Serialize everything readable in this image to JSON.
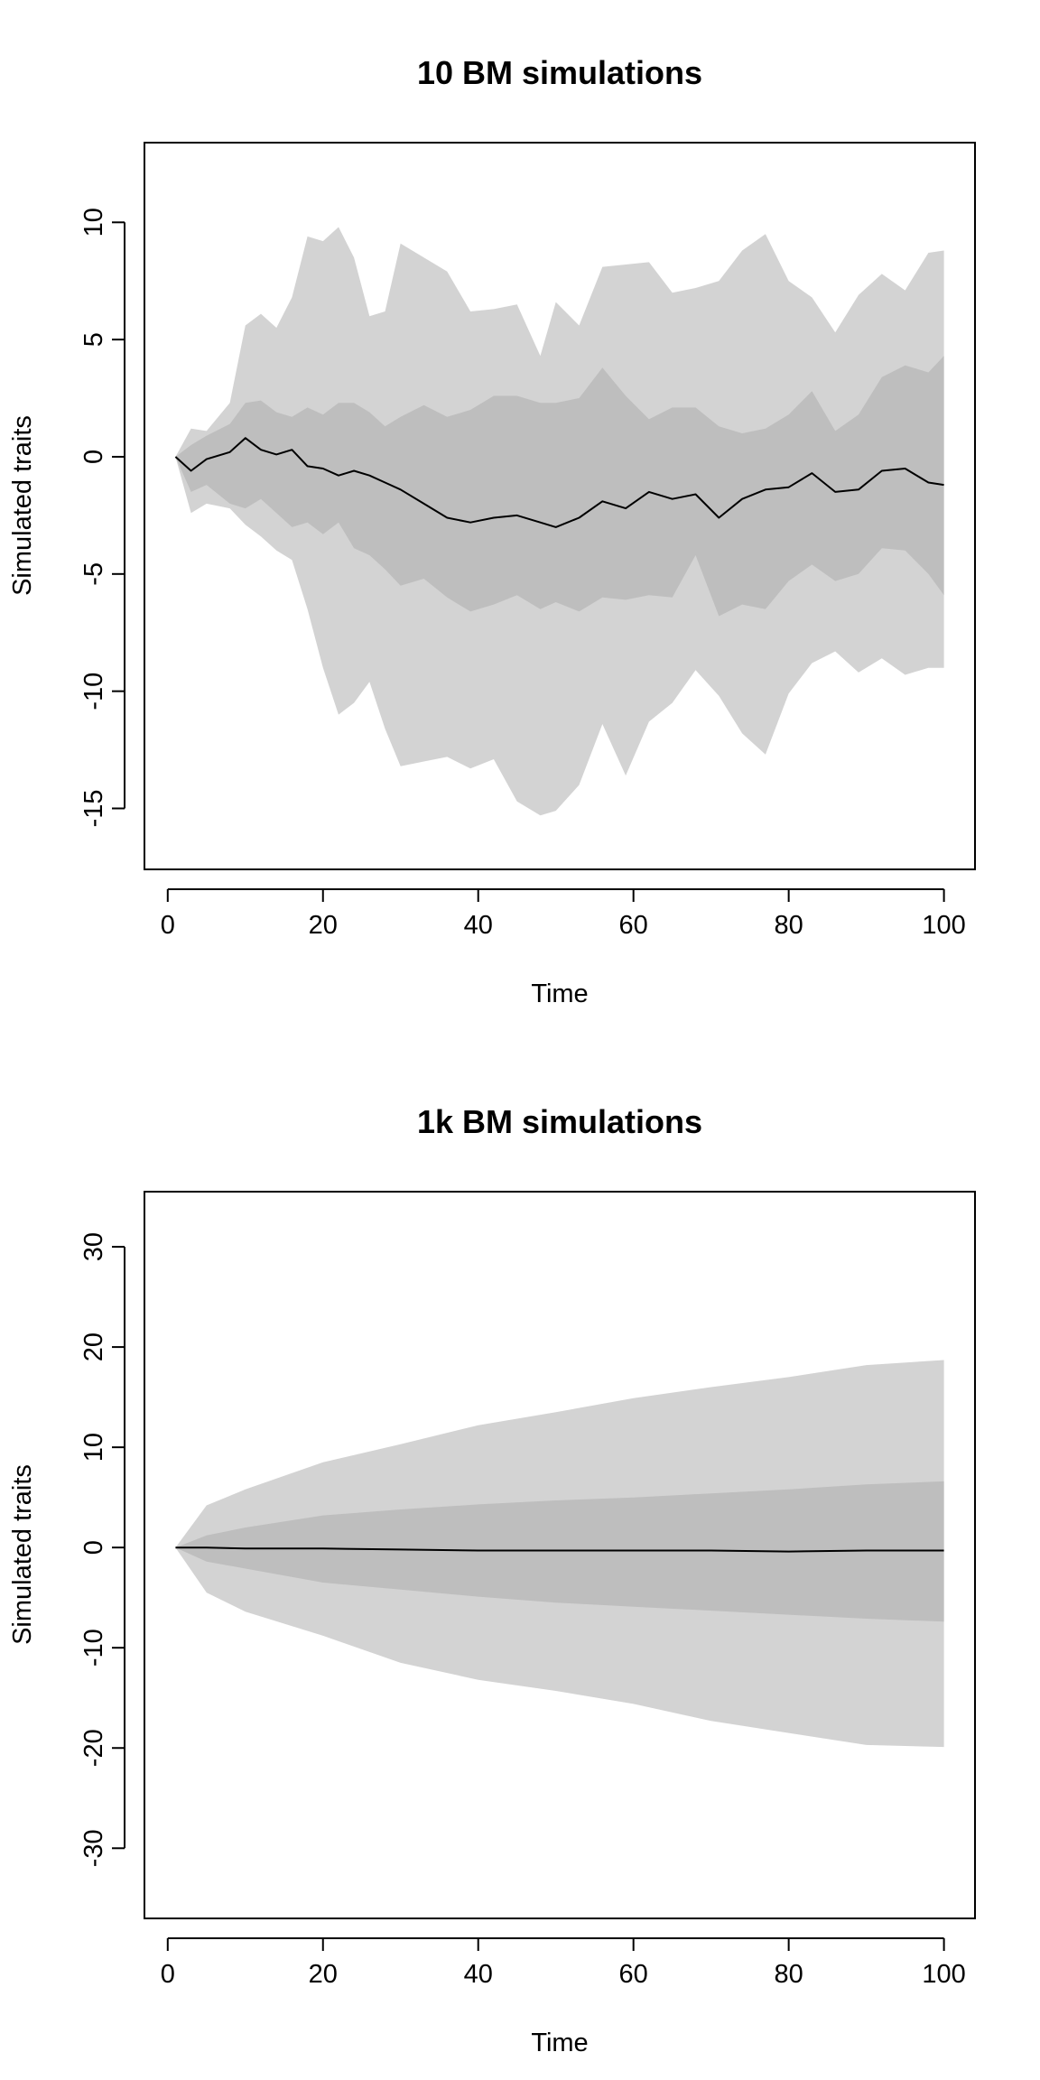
{
  "chart_data": [
    {
      "type": "area",
      "title": "10 BM simulations",
      "xlabel": "Time",
      "ylabel": "Simulated traits",
      "xlim": [
        -3,
        104
      ],
      "ylim": [
        -17.6,
        13.4
      ],
      "xticks": [
        0,
        20,
        40,
        60,
        80,
        100
      ],
      "yticks": [
        -15,
        -10,
        -5,
        0,
        5,
        10
      ],
      "colors": {
        "outer_band": "#d3d3d3",
        "inner_band": "#bebebe",
        "mean_line": "#000000"
      },
      "series": [
        {
          "x": [
            1,
            3,
            5,
            8,
            10,
            12,
            14,
            16,
            18,
            20,
            22,
            24,
            26,
            28,
            30,
            33,
            36,
            39,
            42,
            45,
            48,
            50,
            53,
            56,
            59,
            62,
            65,
            68,
            71,
            74,
            77,
            80,
            83,
            86,
            89,
            92,
            95,
            98,
            100
          ],
          "upper": [
            0,
            1.2,
            1.1,
            2.3,
            5.6,
            6.1,
            5.5,
            6.8,
            9.4,
            9.2,
            9.8,
            8.5,
            6.0,
            6.2,
            9.1,
            8.5,
            7.9,
            6.2,
            6.3,
            6.5,
            4.3,
            6.6,
            5.6,
            8.1,
            8.2,
            8.3,
            7.0,
            7.2,
            7.5,
            8.8,
            9.5,
            7.5,
            6.8,
            5.3,
            6.9,
            7.8,
            7.1,
            8.7,
            8.8
          ]
        },
        {
          "x": [
            1,
            3,
            5,
            8,
            10,
            12,
            14,
            16,
            18,
            20,
            22,
            24,
            26,
            28,
            30,
            33,
            36,
            39,
            42,
            45,
            48,
            50,
            53,
            56,
            59,
            62,
            65,
            68,
            71,
            74,
            77,
            80,
            83,
            86,
            89,
            92,
            95,
            98,
            100
          ],
          "upper": [
            0,
            0.5,
            0.9,
            1.4,
            2.3,
            2.4,
            1.9,
            1.7,
            2.1,
            1.8,
            2.3,
            2.3,
            1.9,
            1.3,
            1.7,
            2.2,
            1.7,
            2.0,
            2.6,
            2.6,
            2.3,
            2.3,
            2.5,
            3.8,
            2.6,
            1.6,
            2.1,
            2.1,
            1.3,
            1.0,
            1.2,
            1.8,
            2.8,
            1.1,
            1.8,
            3.4,
            3.9,
            3.6,
            4.3
          ]
        },
        {
          "x": [
            1,
            3,
            5,
            8,
            10,
            12,
            14,
            16,
            18,
            20,
            22,
            24,
            26,
            28,
            30,
            33,
            36,
            39,
            42,
            45,
            48,
            50,
            53,
            56,
            59,
            62,
            65,
            68,
            71,
            74,
            77,
            80,
            83,
            86,
            89,
            92,
            95,
            98,
            100
          ],
          "lower": [
            0,
            -1.5,
            -1.2,
            -2.0,
            -2.2,
            -1.8,
            -2.4,
            -3.0,
            -2.8,
            -3.3,
            -2.8,
            -3.9,
            -4.2,
            -4.8,
            -5.5,
            -5.2,
            -6.0,
            -6.6,
            -6.3,
            -5.9,
            -6.5,
            -6.2,
            -6.6,
            -6.0,
            -6.1,
            -5.9,
            -6.0,
            -4.2,
            -6.8,
            -6.3,
            -6.5,
            -5.3,
            -4.6,
            -5.3,
            -5.0,
            -3.9,
            -4.0,
            -5.0,
            -5.9
          ]
        },
        {
          "x": [
            1,
            3,
            5,
            8,
            10,
            12,
            14,
            16,
            18,
            20,
            22,
            24,
            26,
            28,
            30,
            33,
            36,
            39,
            42,
            45,
            48,
            50,
            53,
            56,
            59,
            62,
            65,
            68,
            71,
            74,
            77,
            80,
            83,
            86,
            89,
            92,
            95,
            98,
            100
          ],
          "lower": [
            0,
            -2.4,
            -2.0,
            -2.2,
            -2.9,
            -3.4,
            -4.0,
            -4.4,
            -6.5,
            -9.0,
            -11.0,
            -10.5,
            -9.6,
            -11.6,
            -13.2,
            -13.0,
            -12.8,
            -13.3,
            -12.9,
            -14.7,
            -15.3,
            -15.1,
            -14.0,
            -11.4,
            -13.6,
            -11.3,
            -10.5,
            -9.1,
            -10.2,
            -11.8,
            -12.7,
            -10.1,
            -8.8,
            -8.3,
            -9.2,
            -8.6,
            -9.3,
            -9.0,
            -9.0
          ]
        },
        {
          "name": "",
          "x": [
            1,
            3,
            5,
            8,
            10,
            12,
            14,
            16,
            18,
            20,
            22,
            24,
            26,
            28,
            30,
            33,
            36,
            39,
            42,
            45,
            48,
            50,
            53,
            56,
            59,
            62,
            65,
            68,
            71,
            74,
            77,
            80,
            83,
            86,
            89,
            92,
            95,
            98,
            100
          ],
          "values": [
            0,
            -0.6,
            -0.1,
            0.2,
            0.8,
            0.3,
            0.1,
            0.3,
            -0.4,
            -0.5,
            -0.8,
            -0.6,
            -0.8,
            -1.1,
            -1.4,
            -2.0,
            -2.6,
            -2.8,
            -2.6,
            -2.5,
            -2.8,
            -3.0,
            -2.6,
            -1.9,
            -2.2,
            -1.5,
            -1.8,
            -1.6,
            -2.6,
            -1.8,
            -1.4,
            -1.3,
            -0.7,
            -1.5,
            -1.4,
            -0.6,
            -0.5,
            -1.1,
            -1.2
          ]
        }
      ]
    },
    {
      "type": "area",
      "title": "1k BM simulations",
      "xlabel": "Time",
      "ylabel": "Simulated traits",
      "xlim": [
        -3,
        104
      ],
      "ylim": [
        -37,
        35.5
      ],
      "xticks": [
        0,
        20,
        40,
        60,
        80,
        100
      ],
      "yticks": [
        -30,
        -20,
        -10,
        0,
        10,
        20,
        30
      ],
      "colors": {
        "outer_band": "#d3d3d3",
        "inner_band": "#bebebe",
        "mean_line": "#000000"
      },
      "series": [
        {
          "x": [
            1,
            5,
            10,
            20,
            30,
            40,
            50,
            60,
            70,
            80,
            90,
            100
          ],
          "upper": [
            0,
            4.2,
            5.8,
            8.5,
            10.3,
            12.2,
            13.5,
            14.9,
            16.0,
            17.0,
            18.2,
            18.7
          ]
        },
        {
          "x": [
            1,
            5,
            10,
            20,
            30,
            40,
            50,
            60,
            70,
            80,
            90,
            100
          ],
          "upper": [
            0,
            1.2,
            2.0,
            3.2,
            3.8,
            4.3,
            4.7,
            5.0,
            5.4,
            5.8,
            6.3,
            6.6
          ]
        },
        {
          "x": [
            1,
            5,
            10,
            20,
            30,
            40,
            50,
            60,
            70,
            80,
            90,
            100
          ],
          "lower": [
            0,
            -1.4,
            -2.1,
            -3.5,
            -4.2,
            -4.9,
            -5.5,
            -5.9,
            -6.3,
            -6.7,
            -7.1,
            -7.4
          ]
        },
        {
          "x": [
            1,
            5,
            10,
            20,
            30,
            40,
            50,
            60,
            70,
            80,
            90,
            100
          ],
          "lower": [
            0,
            -4.5,
            -6.4,
            -8.8,
            -11.5,
            -13.2,
            -14.3,
            -15.6,
            -17.3,
            -18.5,
            -19.7,
            -19.9
          ]
        },
        {
          "name": "",
          "x": [
            1,
            5,
            10,
            20,
            30,
            40,
            50,
            60,
            70,
            80,
            90,
            100
          ],
          "values": [
            0,
            0.0,
            -0.1,
            -0.1,
            -0.2,
            -0.3,
            -0.3,
            -0.3,
            -0.3,
            -0.4,
            -0.3,
            -0.3
          ]
        }
      ]
    }
  ]
}
